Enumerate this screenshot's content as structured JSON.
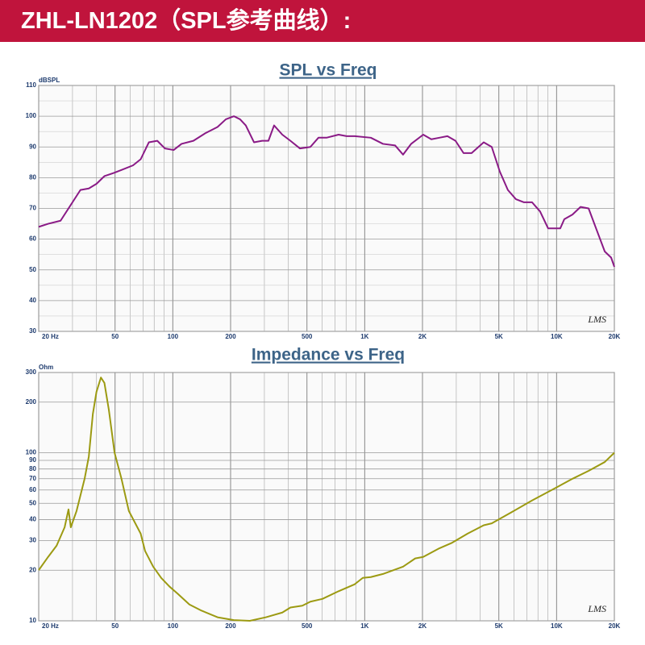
{
  "header": {
    "title": "ZHL-LN1202（SPL参考曲线）:"
  },
  "chart_data": [
    {
      "type": "line",
      "title": "SPL vs Freq",
      "y_label": "dBSPL",
      "watermark": "LMS",
      "xlog": true,
      "ylog": false,
      "grid": true,
      "xlim": [
        20,
        20000
      ],
      "ylim": [
        30,
        110
      ],
      "xticks": [
        {
          "value": 20,
          "label": "20 Hz"
        },
        50,
        100,
        200,
        500,
        {
          "value": 1000,
          "label": "1K"
        },
        {
          "value": 2000,
          "label": "2K"
        },
        {
          "value": 5000,
          "label": "5K"
        },
        {
          "value": 10000,
          "label": "10K"
        },
        {
          "value": 20000,
          "label": "20K"
        }
      ],
      "xminor_ticks": [
        30,
        40,
        60,
        70,
        80,
        90,
        300,
        400,
        600,
        700,
        800,
        900,
        3000,
        4000,
        6000,
        7000,
        8000,
        9000
      ],
      "yticks": [
        30,
        40,
        50,
        60,
        70,
        80,
        90,
        100,
        110
      ],
      "yminor_ticks": [
        35,
        45,
        55,
        65,
        75,
        85,
        95,
        105
      ],
      "series": [
        {
          "color": "#8a1a86",
          "x": [
            20,
            22.4,
            26,
            30,
            33,
            36.5,
            40,
            44,
            49,
            54,
            62,
            68,
            75,
            83,
            91,
            101,
            111,
            128,
            148,
            171,
            189,
            208,
            224,
            240,
            265,
            292,
            315,
            337,
            372,
            410,
            460,
            521,
            574,
            632,
            731,
            805,
            887,
            1076,
            1245,
            1439,
            1585,
            1746,
            2018,
            2224,
            2450,
            2698,
            2972,
            3274,
            3606,
            4170,
            4592,
            5058,
            5572,
            6137,
            6761,
            7447,
            8203,
            9036,
            10450,
            10970,
            12100,
            13330,
            14680,
            16170,
            17820,
            19240,
            20000
          ],
          "values": [
            64,
            65,
            66,
            72,
            76,
            76.5,
            78,
            80.5,
            81.5,
            82.5,
            84,
            86,
            91.5,
            92,
            89.5,
            89,
            91,
            92,
            94.5,
            96.5,
            99,
            100,
            99,
            97,
            91.5,
            92,
            92,
            97,
            94,
            92,
            89.5,
            90,
            93,
            93,
            94,
            93.5,
            93.5,
            93,
            91,
            90.5,
            87.5,
            91,
            94,
            92.5,
            93,
            93.5,
            92,
            88,
            88,
            91.5,
            90,
            82,
            76,
            73,
            72,
            72,
            69,
            63.5,
            63.5,
            66.5,
            68,
            70.5,
            70,
            63,
            56,
            54,
            51
          ]
        }
      ]
    },
    {
      "type": "line",
      "title": "Impedance vs Freq",
      "y_label": "Ohm",
      "watermark": "LMS",
      "xlog": true,
      "ylog": true,
      "grid": true,
      "xlim": [
        20,
        20000
      ],
      "ylim": [
        10,
        300
      ],
      "xticks": [
        {
          "value": 20,
          "label": "20 Hz"
        },
        50,
        100,
        200,
        500,
        {
          "value": 1000,
          "label": "1K"
        },
        {
          "value": 2000,
          "label": "2K"
        },
        {
          "value": 5000,
          "label": "5K"
        },
        {
          "value": 10000,
          "label": "10K"
        },
        {
          "value": 20000,
          "label": "20K"
        }
      ],
      "xminor_ticks": [
        30,
        40,
        60,
        70,
        80,
        90,
        300,
        400,
        600,
        700,
        800,
        900,
        3000,
        4000,
        6000,
        7000,
        8000,
        9000
      ],
      "yticks": [
        10,
        20,
        30,
        40,
        50,
        60,
        70,
        80,
        90,
        100,
        200,
        300
      ],
      "yminor_ticks": [],
      "series": [
        {
          "color": "#9c9a12",
          "x": [
            20,
            22.4,
            24.8,
            27.3,
            28.6,
            29.4,
            31.5,
            34.7,
            36.5,
            38.3,
            40,
            42.2,
            44,
            46.4,
            49.7,
            54,
            59,
            68,
            71.7,
            79,
            87,
            96,
            106,
            122,
            141,
            171,
            208,
            252,
            306,
            372,
            410,
            473,
            521,
            602,
            731,
            887,
            977,
            1076,
            1245,
            1585,
            1833,
            2018,
            2450,
            2831,
            3436,
            4170,
            4592,
            5572,
            7447,
            9956,
            12100,
            14680,
            17820,
            20000
          ],
          "values": [
            20,
            24,
            28,
            36,
            46,
            36,
            45,
            70,
            95,
            170,
            230,
            280,
            260,
            180,
            100,
            70,
            45,
            33,
            26,
            21,
            18,
            16,
            14.5,
            12.5,
            11.5,
            10.5,
            10.1,
            10,
            10.5,
            11.2,
            12,
            12.3,
            13,
            13.5,
            15,
            16.5,
            18,
            18.2,
            19,
            21,
            23.5,
            24,
            27,
            29,
            33,
            37,
            38,
            43,
            52,
            62,
            70,
            78,
            88,
            100
          ]
        }
      ]
    }
  ]
}
